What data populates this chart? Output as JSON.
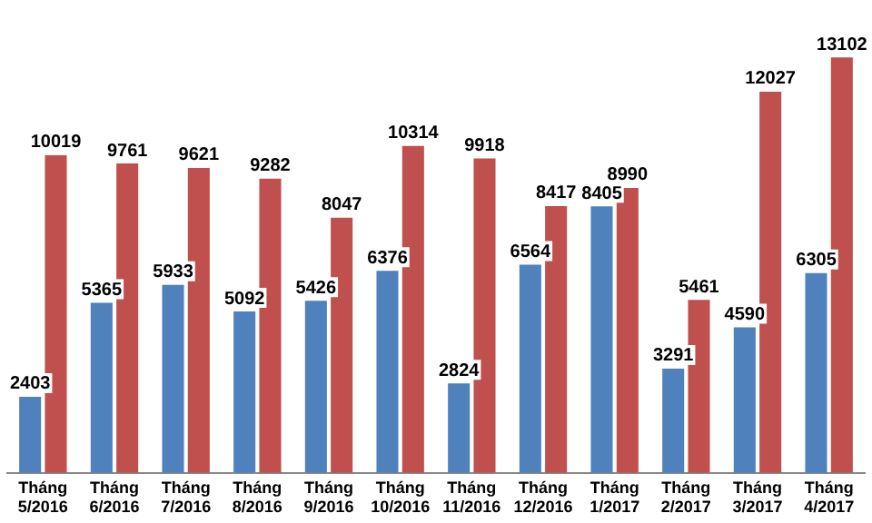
{
  "chart_data": {
    "type": "bar",
    "categories": [
      "Tháng 5/2016",
      "Tháng 6/2016",
      "Tháng 7/2016",
      "Tháng 8/2016",
      "Tháng 9/2016",
      "Tháng 10/2016",
      "Tháng 11/2016",
      "Tháng 12/2016",
      "Tháng 1/2017",
      "Tháng 2/2017",
      "Tháng 3/2017",
      "Tháng 4/2017"
    ],
    "series": [
      {
        "color": "#4f81bd",
        "values": [
          2403,
          5365,
          5933,
          5092,
          5426,
          6376,
          2824,
          6564,
          8405,
          3291,
          4590,
          6305
        ]
      },
      {
        "color": "#c0504d",
        "values": [
          10019,
          9761,
          9621,
          9282,
          8047,
          10314,
          9918,
          8417,
          8990,
          5461,
          12027,
          13102
        ]
      }
    ],
    "data_labels": true,
    "grid": false,
    "legend": false
  }
}
